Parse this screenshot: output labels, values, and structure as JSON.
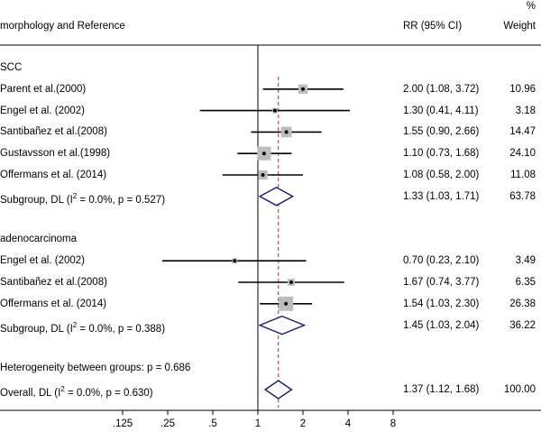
{
  "chart_data": {
    "type": "forest",
    "title": "",
    "headers": {
      "study": "morphology and Reference",
      "rr": "RR (95% CI)",
      "weight_pct": "%",
      "weight": "Weight"
    },
    "xscale": "log",
    "xlim": [
      0.0625,
      8
    ],
    "xticks": [
      {
        "value": 0.125,
        "label": ".125"
      },
      {
        "value": 0.25,
        "label": ".25"
      },
      {
        "value": 0.5,
        "label": ".5"
      },
      {
        "value": 1,
        "label": "1"
      },
      {
        "value": 2,
        "label": "2"
      },
      {
        "value": 4,
        "label": "4"
      },
      {
        "value": 8,
        "label": "8"
      }
    ],
    "null_line": 1,
    "overall_line": 1.37,
    "rows": [
      {
        "kind": "group",
        "label": "SCC"
      },
      {
        "kind": "study",
        "label": "Parent et al.(2000)",
        "rr": 2.0,
        "lo": 1.08,
        "hi": 3.72,
        "ci_text": "2.00 (1.08, 3.72)",
        "weight": "10.96"
      },
      {
        "kind": "study",
        "label": "Engel et al. (2002)",
        "rr": 1.3,
        "lo": 0.41,
        "hi": 4.11,
        "ci_text": "1.30 (0.41, 4.11)",
        "weight": "3.18"
      },
      {
        "kind": "study",
        "label": "Santibañez et al.(2008)",
        "rr": 1.55,
        "lo": 0.9,
        "hi": 2.66,
        "ci_text": "1.55 (0.90, 2.66)",
        "weight": "14.47"
      },
      {
        "kind": "study",
        "label": "Gustavsson et al.(1998)",
        "rr": 1.1,
        "lo": 0.73,
        "hi": 1.68,
        "ci_text": "1.10 (0.73, 1.68)",
        "weight": "24.10"
      },
      {
        "kind": "study",
        "label": "Offermans et al. (2014)",
        "rr": 1.08,
        "lo": 0.58,
        "hi": 2.0,
        "ci_text": "1.08 (0.58, 2.00)",
        "weight": "11.08"
      },
      {
        "kind": "subtotal",
        "label_pre": "Subgroup, DL (I",
        "label_sup": "2",
        "label_post": " = 0.0%, p = 0.527)",
        "rr": 1.33,
        "lo": 1.03,
        "hi": 1.71,
        "ci_text": "1.33 (1.03, 1.71)",
        "weight": "63.78"
      },
      {
        "kind": "blank"
      },
      {
        "kind": "group",
        "label": "adenocarcinoma"
      },
      {
        "kind": "study",
        "label": "Engel et al. (2002)",
        "rr": 0.7,
        "lo": 0.23,
        "hi": 2.1,
        "ci_text": "0.70 (0.23, 2.10)",
        "weight": "3.49"
      },
      {
        "kind": "study",
        "label": "Santibañez et al.(2008)",
        "rr": 1.67,
        "lo": 0.74,
        "hi": 3.77,
        "ci_text": "1.67 (0.74, 3.77)",
        "weight": "6.35"
      },
      {
        "kind": "study",
        "label": "Offermans et al. (2014)",
        "rr": 1.54,
        "lo": 1.03,
        "hi": 2.3,
        "ci_text": "1.54 (1.03, 2.30)",
        "weight": "26.38"
      },
      {
        "kind": "subtotal",
        "label_pre": "Subgroup, DL (I",
        "label_sup": "2",
        "label_post": " = 0.0%, p = 0.388)",
        "rr": 1.45,
        "lo": 1.03,
        "hi": 2.04,
        "ci_text": "1.45 (1.03, 2.04)",
        "weight": "36.22"
      },
      {
        "kind": "blank"
      },
      {
        "kind": "note",
        "label": "Heterogeneity between groups: p = 0.686"
      },
      {
        "kind": "subtotal",
        "label_pre": "Overall, DL (I",
        "label_sup": "2",
        "label_post": " = 0.0%, p = 0.630)",
        "rr": 1.37,
        "lo": 1.12,
        "hi": 1.68,
        "ci_text": "1.37 (1.12, 1.68)",
        "weight": "100.00"
      }
    ]
  }
}
